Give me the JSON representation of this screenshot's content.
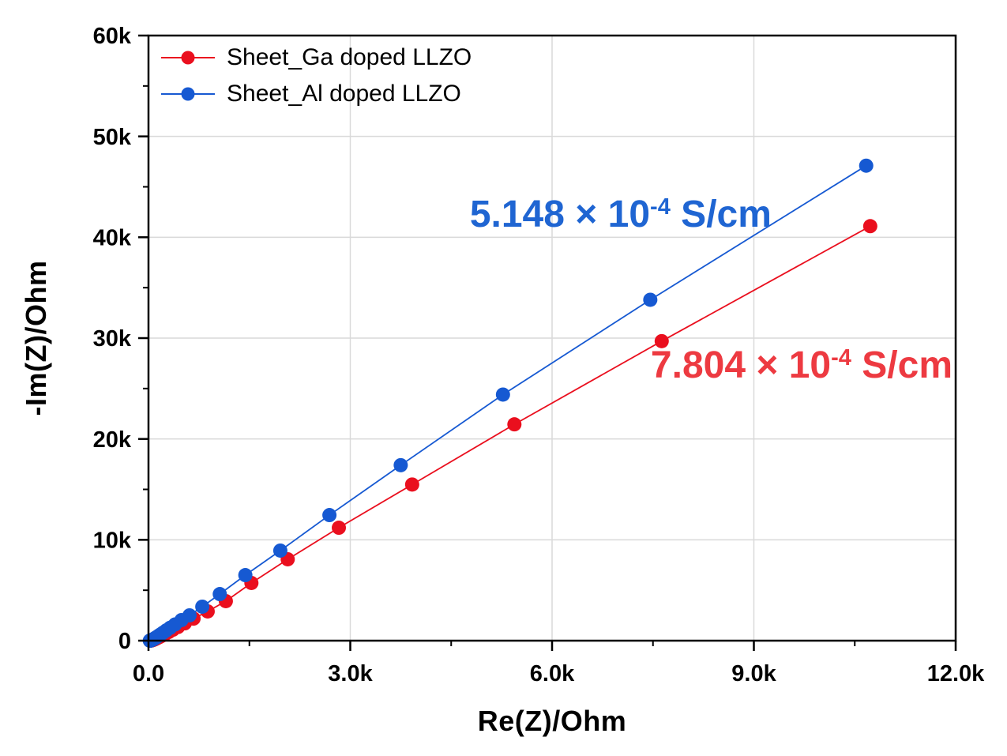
{
  "chart_data": {
    "type": "scatter",
    "title": "",
    "xlabel": "Re(Z)/Ohm",
    "ylabel": "-Im(Z)/Ohm",
    "xlim": [
      0,
      12000
    ],
    "ylim": [
      0,
      60000
    ],
    "x_tick_values": [
      0,
      3000,
      6000,
      9000,
      12000
    ],
    "x_tick_labels": [
      "0.0",
      "3.0k",
      "6.0k",
      "9.0k",
      "12.0k"
    ],
    "x_minor_tick_values": [
      1500,
      4500,
      7500,
      10500
    ],
    "y_tick_values": [
      0,
      10000,
      20000,
      30000,
      40000,
      50000,
      60000
    ],
    "y_tick_labels": [
      "0",
      "10k",
      "20k",
      "30k",
      "40k",
      "50k",
      "60k"
    ],
    "y_minor_tick_values": [
      5000,
      15000,
      25000,
      35000,
      45000,
      55000
    ],
    "grid": "major",
    "grid_color": "#d9d9d9",
    "axis_color": "#000000",
    "background_color": "#ffffff",
    "legend_position": "top-left",
    "series": [
      {
        "name": "Sheet_Ga doped LLZO",
        "color": "#ea0f1e",
        "marker": "circle",
        "points": [
          [
            24,
            1
          ],
          [
            27,
            3
          ],
          [
            30,
            6
          ],
          [
            34,
            10
          ],
          [
            38,
            16
          ],
          [
            43,
            24
          ],
          [
            49,
            34
          ],
          [
            56,
            48
          ],
          [
            64,
            66
          ],
          [
            73,
            88
          ],
          [
            83,
            114
          ],
          [
            96,
            146
          ],
          [
            111,
            192
          ],
          [
            129,
            250
          ],
          [
            151,
            325
          ],
          [
            178,
            415
          ],
          [
            211,
            530
          ],
          [
            251,
            675
          ],
          [
            300,
            855
          ],
          [
            362,
            1080
          ],
          [
            440,
            1360
          ],
          [
            540,
            1720
          ],
          [
            670,
            2190
          ],
          [
            880,
            2900
          ],
          [
            1150,
            3920
          ],
          [
            1530,
            5720
          ],
          [
            2070,
            8070
          ],
          [
            2830,
            11200
          ],
          [
            3920,
            15480
          ],
          [
            5440,
            21450
          ],
          [
            7630,
            29700
          ],
          [
            10730,
            41100
          ]
        ]
      },
      {
        "name": "Sheet_Al doped LLZO",
        "color": "#1659d2",
        "marker": "circle",
        "points": [
          [
            20,
            2
          ],
          [
            23,
            5
          ],
          [
            26,
            9
          ],
          [
            29,
            14
          ],
          [
            33,
            21
          ],
          [
            37,
            31
          ],
          [
            42,
            44
          ],
          [
            48,
            61
          ],
          [
            55,
            83
          ],
          [
            63,
            111
          ],
          [
            72,
            146
          ],
          [
            83,
            190
          ],
          [
            96,
            245
          ],
          [
            112,
            315
          ],
          [
            131,
            400
          ],
          [
            155,
            510
          ],
          [
            184,
            645
          ],
          [
            220,
            810
          ],
          [
            265,
            1020
          ],
          [
            322,
            1280
          ],
          [
            395,
            1610
          ],
          [
            490,
            2040
          ],
          [
            610,
            2510
          ],
          [
            800,
            3370
          ],
          [
            1060,
            4620
          ],
          [
            1440,
            6500
          ],
          [
            1960,
            8930
          ],
          [
            2690,
            12450
          ],
          [
            3750,
            17400
          ],
          [
            5270,
            24400
          ],
          [
            7460,
            33800
          ],
          [
            10670,
            47100
          ]
        ]
      }
    ],
    "annotations": [
      {
        "prefix": "5.148 × 10",
        "exponent": "-4",
        "suffix": " S/cm",
        "color": "#1f65d2",
        "x": 7020,
        "y": 42200
      },
      {
        "prefix": "7.804 × 10",
        "exponent": "-4",
        "suffix": " S/cm",
        "color": "#ed3a41",
        "x": 9710,
        "y": 27260
      }
    ]
  }
}
